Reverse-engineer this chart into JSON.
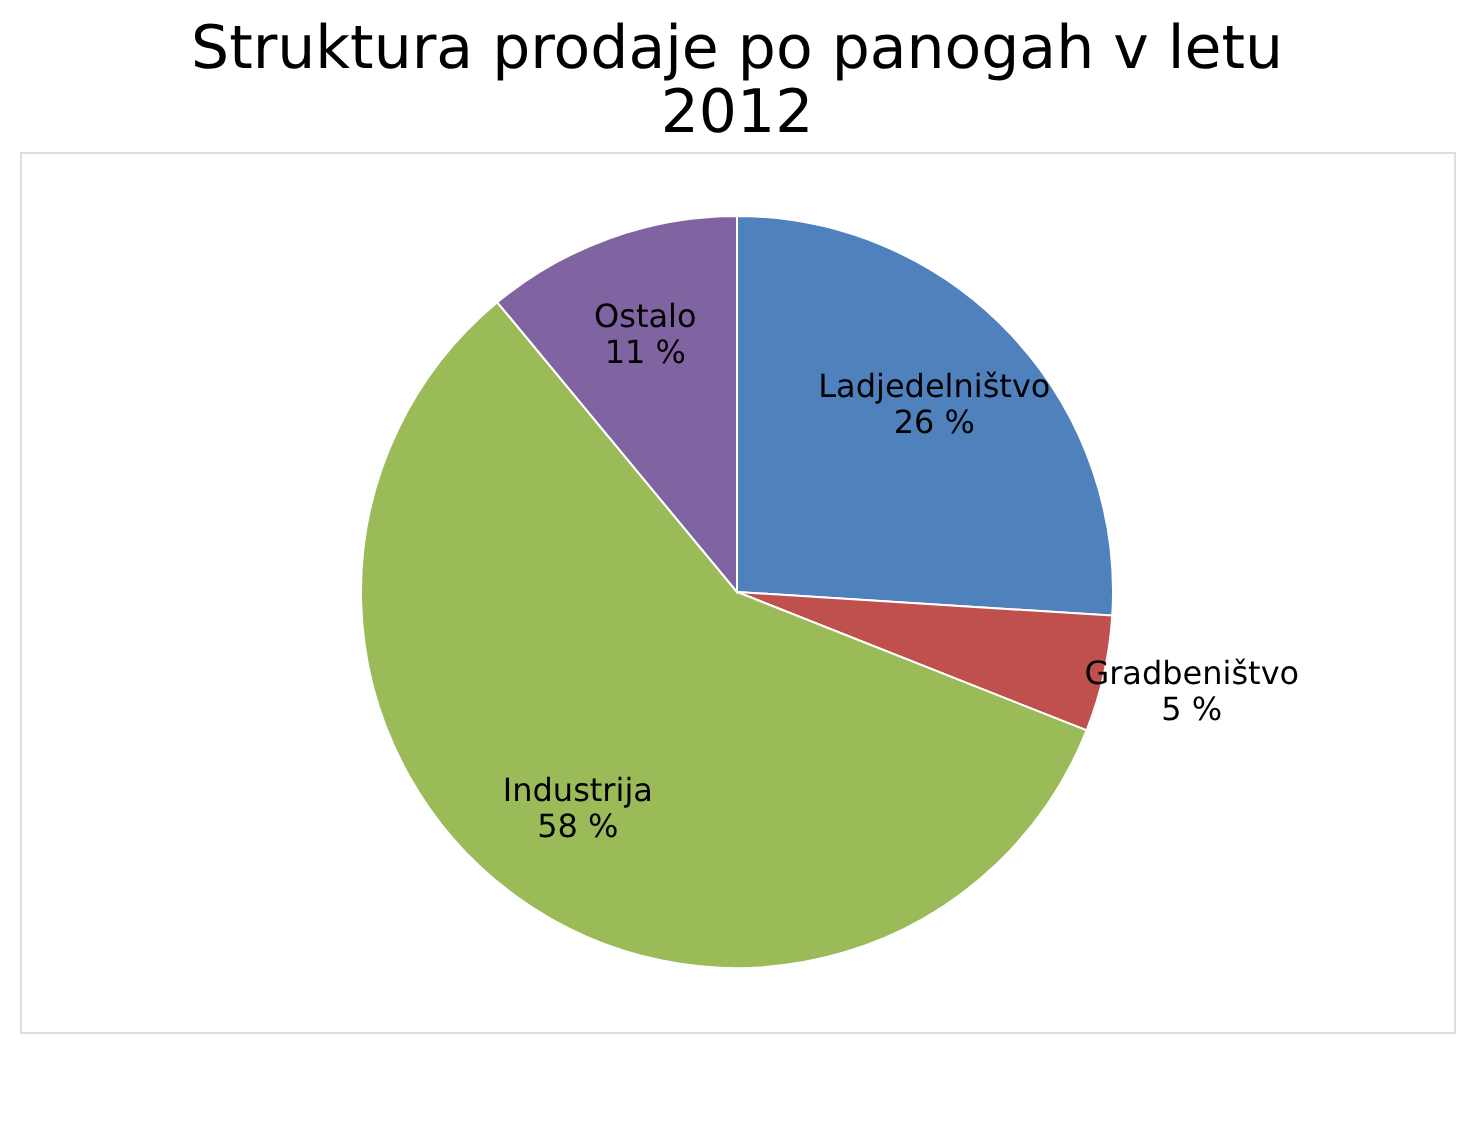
{
  "chart_data": {
    "type": "pie",
    "title": "Struktura prodaje po panogah v letu 2012",
    "categories": [
      "Ladjedelništvo",
      "Gradbeništvo",
      "Industrija",
      "Ostalo"
    ],
    "values": [
      26,
      5,
      58,
      11
    ],
    "colors": [
      "#4f81bd",
      "#c0504d",
      "#9bbb59",
      "#8064a2"
    ],
    "value_labels": [
      "26 %",
      "5 %",
      "58 %",
      "11 %"
    ],
    "legend": false
  }
}
